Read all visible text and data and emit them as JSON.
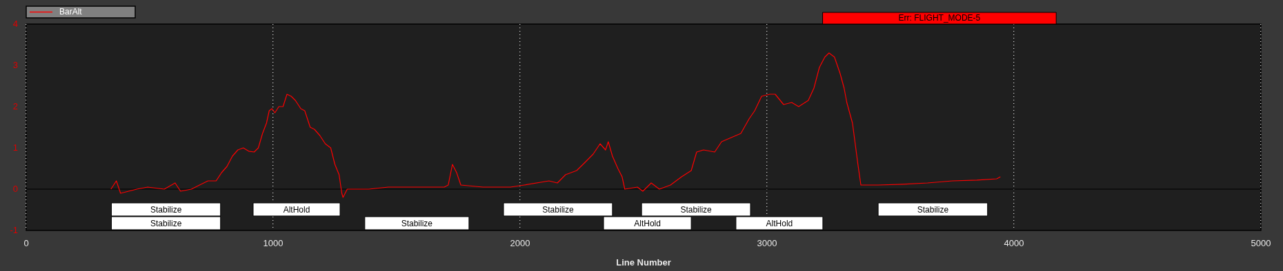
{
  "chart_data": {
    "type": "line",
    "xlabel": "Line Number",
    "x": [
      343,
      365,
      382,
      448,
      492,
      559,
      603,
      625,
      669,
      702,
      736,
      769,
      791,
      813,
      835,
      857,
      879,
      901,
      923,
      940,
      957,
      973,
      984,
      995,
      1007,
      1023,
      1040,
      1056,
      1073,
      1090,
      1112,
      1128,
      1150,
      1167,
      1189,
      1211,
      1233,
      1250,
      1267,
      1278,
      1283,
      1300,
      1388,
      1466,
      1554,
      1626,
      1693,
      1709,
      1726,
      1743,
      1760,
      1849,
      1961,
      2017,
      2117,
      2151,
      2184,
      2229,
      2263,
      2296,
      2324,
      2346,
      2357,
      2374,
      2396,
      2413,
      2424,
      2475,
      2497,
      2531,
      2564,
      2609,
      2654,
      2693,
      2715,
      2743,
      2788,
      2816,
      2855,
      2894,
      2927,
      2950,
      2978,
      3011,
      3033,
      3067,
      3100,
      3128,
      3167,
      3190,
      3212,
      3234,
      3251,
      3273,
      3296,
      3312,
      3323,
      3346,
      3368,
      3380,
      3450,
      3550,
      3650,
      3750,
      3850,
      3930,
      3945
    ],
    "series": [
      {
        "name": "BarAlt",
        "color": "#ff0000",
        "values": [
          0.0,
          0.2,
          -0.1,
          0.0,
          0.05,
          0.0,
          0.15,
          -0.05,
          0.0,
          0.1,
          0.2,
          0.2,
          0.4,
          0.55,
          0.8,
          0.95,
          1.0,
          0.92,
          0.9,
          1.0,
          1.35,
          1.6,
          1.9,
          1.95,
          1.85,
          2.0,
          2.0,
          2.3,
          2.25,
          2.15,
          1.95,
          1.9,
          1.5,
          1.45,
          1.3,
          1.1,
          1.0,
          0.6,
          0.35,
          -0.1,
          -0.2,
          0.0,
          0.0,
          0.05,
          0.05,
          0.05,
          0.05,
          0.1,
          0.6,
          0.4,
          0.1,
          0.05,
          0.05,
          0.1,
          0.2,
          0.15,
          0.35,
          0.45,
          0.65,
          0.85,
          1.1,
          0.95,
          1.15,
          0.8,
          0.5,
          0.3,
          0.0,
          0.05,
          -0.05,
          0.15,
          0.0,
          0.1,
          0.3,
          0.45,
          0.9,
          0.95,
          0.9,
          1.15,
          1.25,
          1.35,
          1.7,
          1.9,
          2.25,
          2.3,
          2.3,
          2.05,
          2.1,
          2.0,
          2.15,
          2.45,
          2.95,
          3.2,
          3.3,
          3.2,
          2.8,
          2.45,
          2.1,
          1.6,
          0.6,
          0.1,
          0.1,
          0.12,
          0.15,
          0.2,
          0.22,
          0.25,
          0.3
        ]
      }
    ],
    "xlim": [
      0,
      5000
    ],
    "xticks": [
      0,
      1000,
      2000,
      3000,
      4000,
      5000
    ],
    "ylim": [
      -1,
      4
    ],
    "yticks": [
      -1,
      0,
      1,
      2,
      3,
      4
    ],
    "grid": "x",
    "legend": "top left",
    "marker": "none",
    "line_style": "solid",
    "ref_lines": [
      {
        "axis": "y",
        "value": 0,
        "color": "#000000"
      }
    ],
    "bands": [
      {
        "axis": "x",
        "from": 345,
        "to": 787,
        "label": "Stabilize",
        "color": "#ffffff"
      },
      {
        "axis": "x",
        "from": 345,
        "to": 787,
        "label": "Stabilize",
        "color": "#ffffff"
      },
      {
        "axis": "x",
        "from": 919,
        "to": 1271,
        "label": "AltHold",
        "color": "#ffffff"
      },
      {
        "axis": "x",
        "from": 1371,
        "to": 1793,
        "label": "Stabilize",
        "color": "#ffffff"
      },
      {
        "axis": "x",
        "from": 1933,
        "to": 2374,
        "label": "Stabilize",
        "color": "#ffffff"
      },
      {
        "axis": "x",
        "from": 2338,
        "to": 2693,
        "label": "AltHold",
        "color": "#ffffff"
      },
      {
        "axis": "x",
        "from": 2492,
        "to": 2933,
        "label": "Stabilize",
        "color": "#ffffff"
      },
      {
        "axis": "x",
        "from": 2874,
        "to": 3226,
        "label": "AltHold",
        "color": "#ffffff"
      },
      {
        "axis": "x",
        "from": 3450,
        "to": 3893,
        "label": "Stabilize",
        "color": "#ffffff"
      }
    ],
    "annotations": [
      "Err: FLIGHT_MODE-5"
    ]
  }
}
